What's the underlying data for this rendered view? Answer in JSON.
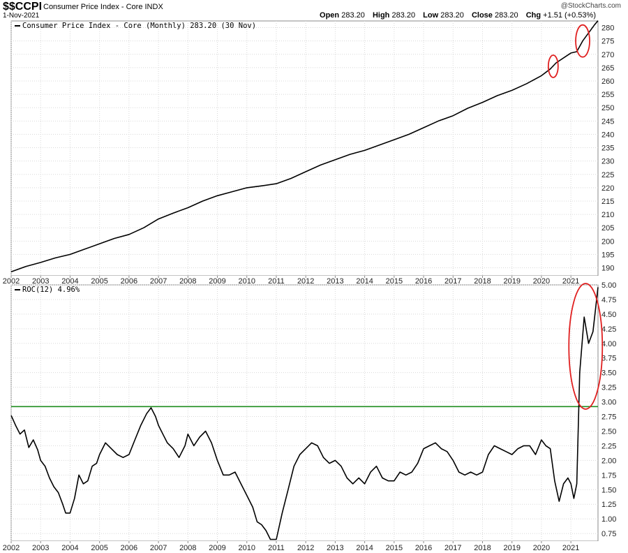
{
  "header": {
    "symbol": "$$CCPI",
    "name": "Consumer Price Index - Core  INDX",
    "date": "1-Nov-2021",
    "copyright": "@StockCharts.com",
    "ohlc": [
      {
        "label": "Open",
        "value": "283.20"
      },
      {
        "label": "High",
        "value": "283.20"
      },
      {
        "label": "Low",
        "value": "283.20"
      },
      {
        "label": "Close",
        "value": "283.20"
      },
      {
        "label": "Chg",
        "value": "+1.51 (+0.53%)"
      }
    ]
  },
  "chart_data": [
    {
      "type": "line",
      "legend": "Consumer Price Index - Core (Monthly) 283.20 (30 Nov)",
      "legend_placement": "top-left",
      "grid": true,
      "ylim": [
        187,
        282.5
      ],
      "yticks": [
        190,
        195,
        200,
        205,
        210,
        215,
        220,
        225,
        230,
        235,
        240,
        245,
        250,
        255,
        260,
        265,
        270,
        275,
        280
      ],
      "x_tick_labels": [
        "2002",
        "2003",
        "2004",
        "2005",
        "2006",
        "2007",
        "2008",
        "2009",
        "2010",
        "2011",
        "2012",
        "2013",
        "2014",
        "2015",
        "2016",
        "2017",
        "2018",
        "2019",
        "2020",
        "2021"
      ],
      "xlim": [
        2002.0,
        2021.92
      ],
      "series": [
        {
          "x": [
            2002.0,
            2002.5,
            2003.0,
            2003.5,
            2004.0,
            2004.5,
            2005.0,
            2005.5,
            2006.0,
            2006.5,
            2007.0,
            2007.5,
            2008.0,
            2008.5,
            2009.0,
            2009.5,
            2010.0,
            2010.5,
            2011.0,
            2011.5,
            2012.0,
            2012.5,
            2013.0,
            2013.5,
            2014.0,
            2014.5,
            2015.0,
            2015.5,
            2016.0,
            2016.5,
            2017.0,
            2017.5,
            2018.0,
            2018.5,
            2019.0,
            2019.5,
            2020.0,
            2020.3,
            2020.5,
            2020.8,
            2021.0,
            2021.2,
            2021.4,
            2021.6,
            2021.8,
            2021.92
          ],
          "y": [
            188.5,
            190.5,
            192.0,
            193.7,
            195.0,
            197.0,
            199.0,
            201.0,
            202.5,
            205.0,
            208.3,
            210.5,
            212.5,
            215.0,
            217.0,
            218.5,
            220.0,
            220.7,
            221.5,
            223.5,
            226.0,
            228.5,
            230.5,
            232.5,
            234.0,
            236.0,
            238.0,
            240.0,
            242.5,
            245.0,
            247.0,
            249.8,
            252.0,
            254.5,
            256.5,
            259.0,
            262.0,
            264.5,
            266.8,
            269.0,
            270.5,
            271.0,
            275.0,
            278.0,
            281.0,
            282.6
          ]
        }
      ],
      "annotations": [
        {
          "type": "ellipse",
          "color": "#e02020",
          "x": 2020.4,
          "y": 265.5
        },
        {
          "type": "ellipse",
          "color": "#e02020",
          "x": 2021.4,
          "y": 275.0
        }
      ]
    },
    {
      "type": "line",
      "legend": "ROC(12) 4.96%",
      "legend_placement": "top-left",
      "grid": true,
      "ylim": [
        0.62,
        5.0
      ],
      "yticks": [
        0.75,
        1.0,
        1.25,
        1.5,
        1.75,
        2.0,
        2.25,
        2.5,
        2.75,
        3.0,
        3.25,
        3.5,
        3.75,
        4.0,
        4.25,
        4.5,
        4.75,
        5.0
      ],
      "ytick_labels": [
        "0.75",
        "1.00",
        "1.25",
        "1.50",
        "1.75",
        "2.00",
        "2.25",
        "2.50",
        "2.75",
        "3.00",
        "3.25",
        "3.50",
        "3.75",
        "4.00",
        "4.25",
        "4.50",
        "4.75",
        "5.00"
      ],
      "x_tick_labels": [
        "2002",
        "2003",
        "2004",
        "2005",
        "2006",
        "2007",
        "2008",
        "2009",
        "2010",
        "2011",
        "2012",
        "2013",
        "2014",
        "2015",
        "2016",
        "2017",
        "2018",
        "2019",
        "2020",
        "2021"
      ],
      "xlim": [
        2002.0,
        2021.92
      ],
      "reference_line": {
        "y": 2.92,
        "color": "#1e8c1e"
      },
      "series": [
        {
          "x": [
            2002.0,
            2002.15,
            2002.3,
            2002.45,
            2002.6,
            2002.75,
            2002.9,
            2003.0,
            2003.15,
            2003.3,
            2003.45,
            2003.6,
            2003.75,
            2003.85,
            2004.0,
            2004.15,
            2004.3,
            2004.45,
            2004.6,
            2004.75,
            2004.9,
            2005.0,
            2005.2,
            2005.4,
            2005.6,
            2005.8,
            2006.0,
            2006.2,
            2006.4,
            2006.6,
            2006.75,
            2006.9,
            2007.0,
            2007.15,
            2007.3,
            2007.5,
            2007.7,
            2007.9,
            2008.0,
            2008.2,
            2008.4,
            2008.6,
            2008.8,
            2009.0,
            2009.2,
            2009.4,
            2009.6,
            2009.8,
            2010.0,
            2010.2,
            2010.35,
            2010.5,
            2010.65,
            2010.8,
            2011.0,
            2011.2,
            2011.4,
            2011.6,
            2011.8,
            2012.0,
            2012.2,
            2012.4,
            2012.6,
            2012.8,
            2013.0,
            2013.2,
            2013.4,
            2013.6,
            2013.8,
            2014.0,
            2014.2,
            2014.4,
            2014.6,
            2014.8,
            2015.0,
            2015.2,
            2015.4,
            2015.6,
            2015.8,
            2016.0,
            2016.2,
            2016.4,
            2016.6,
            2016.8,
            2017.0,
            2017.2,
            2017.4,
            2017.6,
            2017.8,
            2018.0,
            2018.2,
            2018.4,
            2018.6,
            2018.8,
            2019.0,
            2019.2,
            2019.4,
            2019.6,
            2019.8,
            2020.0,
            2020.15,
            2020.3,
            2020.45,
            2020.6,
            2020.75,
            2020.9,
            2021.0,
            2021.1,
            2021.2,
            2021.3,
            2021.45,
            2021.6,
            2021.75,
            2021.92
          ],
          "y": [
            2.77,
            2.6,
            2.45,
            2.52,
            2.22,
            2.35,
            2.18,
            2.0,
            1.9,
            1.7,
            1.55,
            1.45,
            1.25,
            1.1,
            1.1,
            1.35,
            1.75,
            1.6,
            1.65,
            1.9,
            1.95,
            2.1,
            2.3,
            2.2,
            2.1,
            2.05,
            2.1,
            2.35,
            2.6,
            2.8,
            2.9,
            2.75,
            2.6,
            2.45,
            2.3,
            2.2,
            2.05,
            2.25,
            2.45,
            2.25,
            2.4,
            2.5,
            2.3,
            2.0,
            1.75,
            1.75,
            1.8,
            1.6,
            1.4,
            1.2,
            0.95,
            0.9,
            0.8,
            0.65,
            0.65,
            1.1,
            1.5,
            1.9,
            2.1,
            2.2,
            2.3,
            2.25,
            2.05,
            1.95,
            2.0,
            1.9,
            1.7,
            1.6,
            1.7,
            1.6,
            1.8,
            1.9,
            1.7,
            1.65,
            1.65,
            1.8,
            1.75,
            1.8,
            1.95,
            2.2,
            2.25,
            2.3,
            2.2,
            2.15,
            2.0,
            1.8,
            1.75,
            1.8,
            1.75,
            1.8,
            2.1,
            2.25,
            2.2,
            2.15,
            2.1,
            2.2,
            2.25,
            2.25,
            2.1,
            2.35,
            2.25,
            2.2,
            1.65,
            1.3,
            1.6,
            1.7,
            1.6,
            1.35,
            1.6,
            3.5,
            4.45,
            4.0,
            4.2,
            4.96
          ]
        }
      ],
      "annotations": [
        {
          "type": "ellipse",
          "color": "#e02020",
          "x": 2021.5,
          "y": 3.95
        }
      ]
    }
  ]
}
